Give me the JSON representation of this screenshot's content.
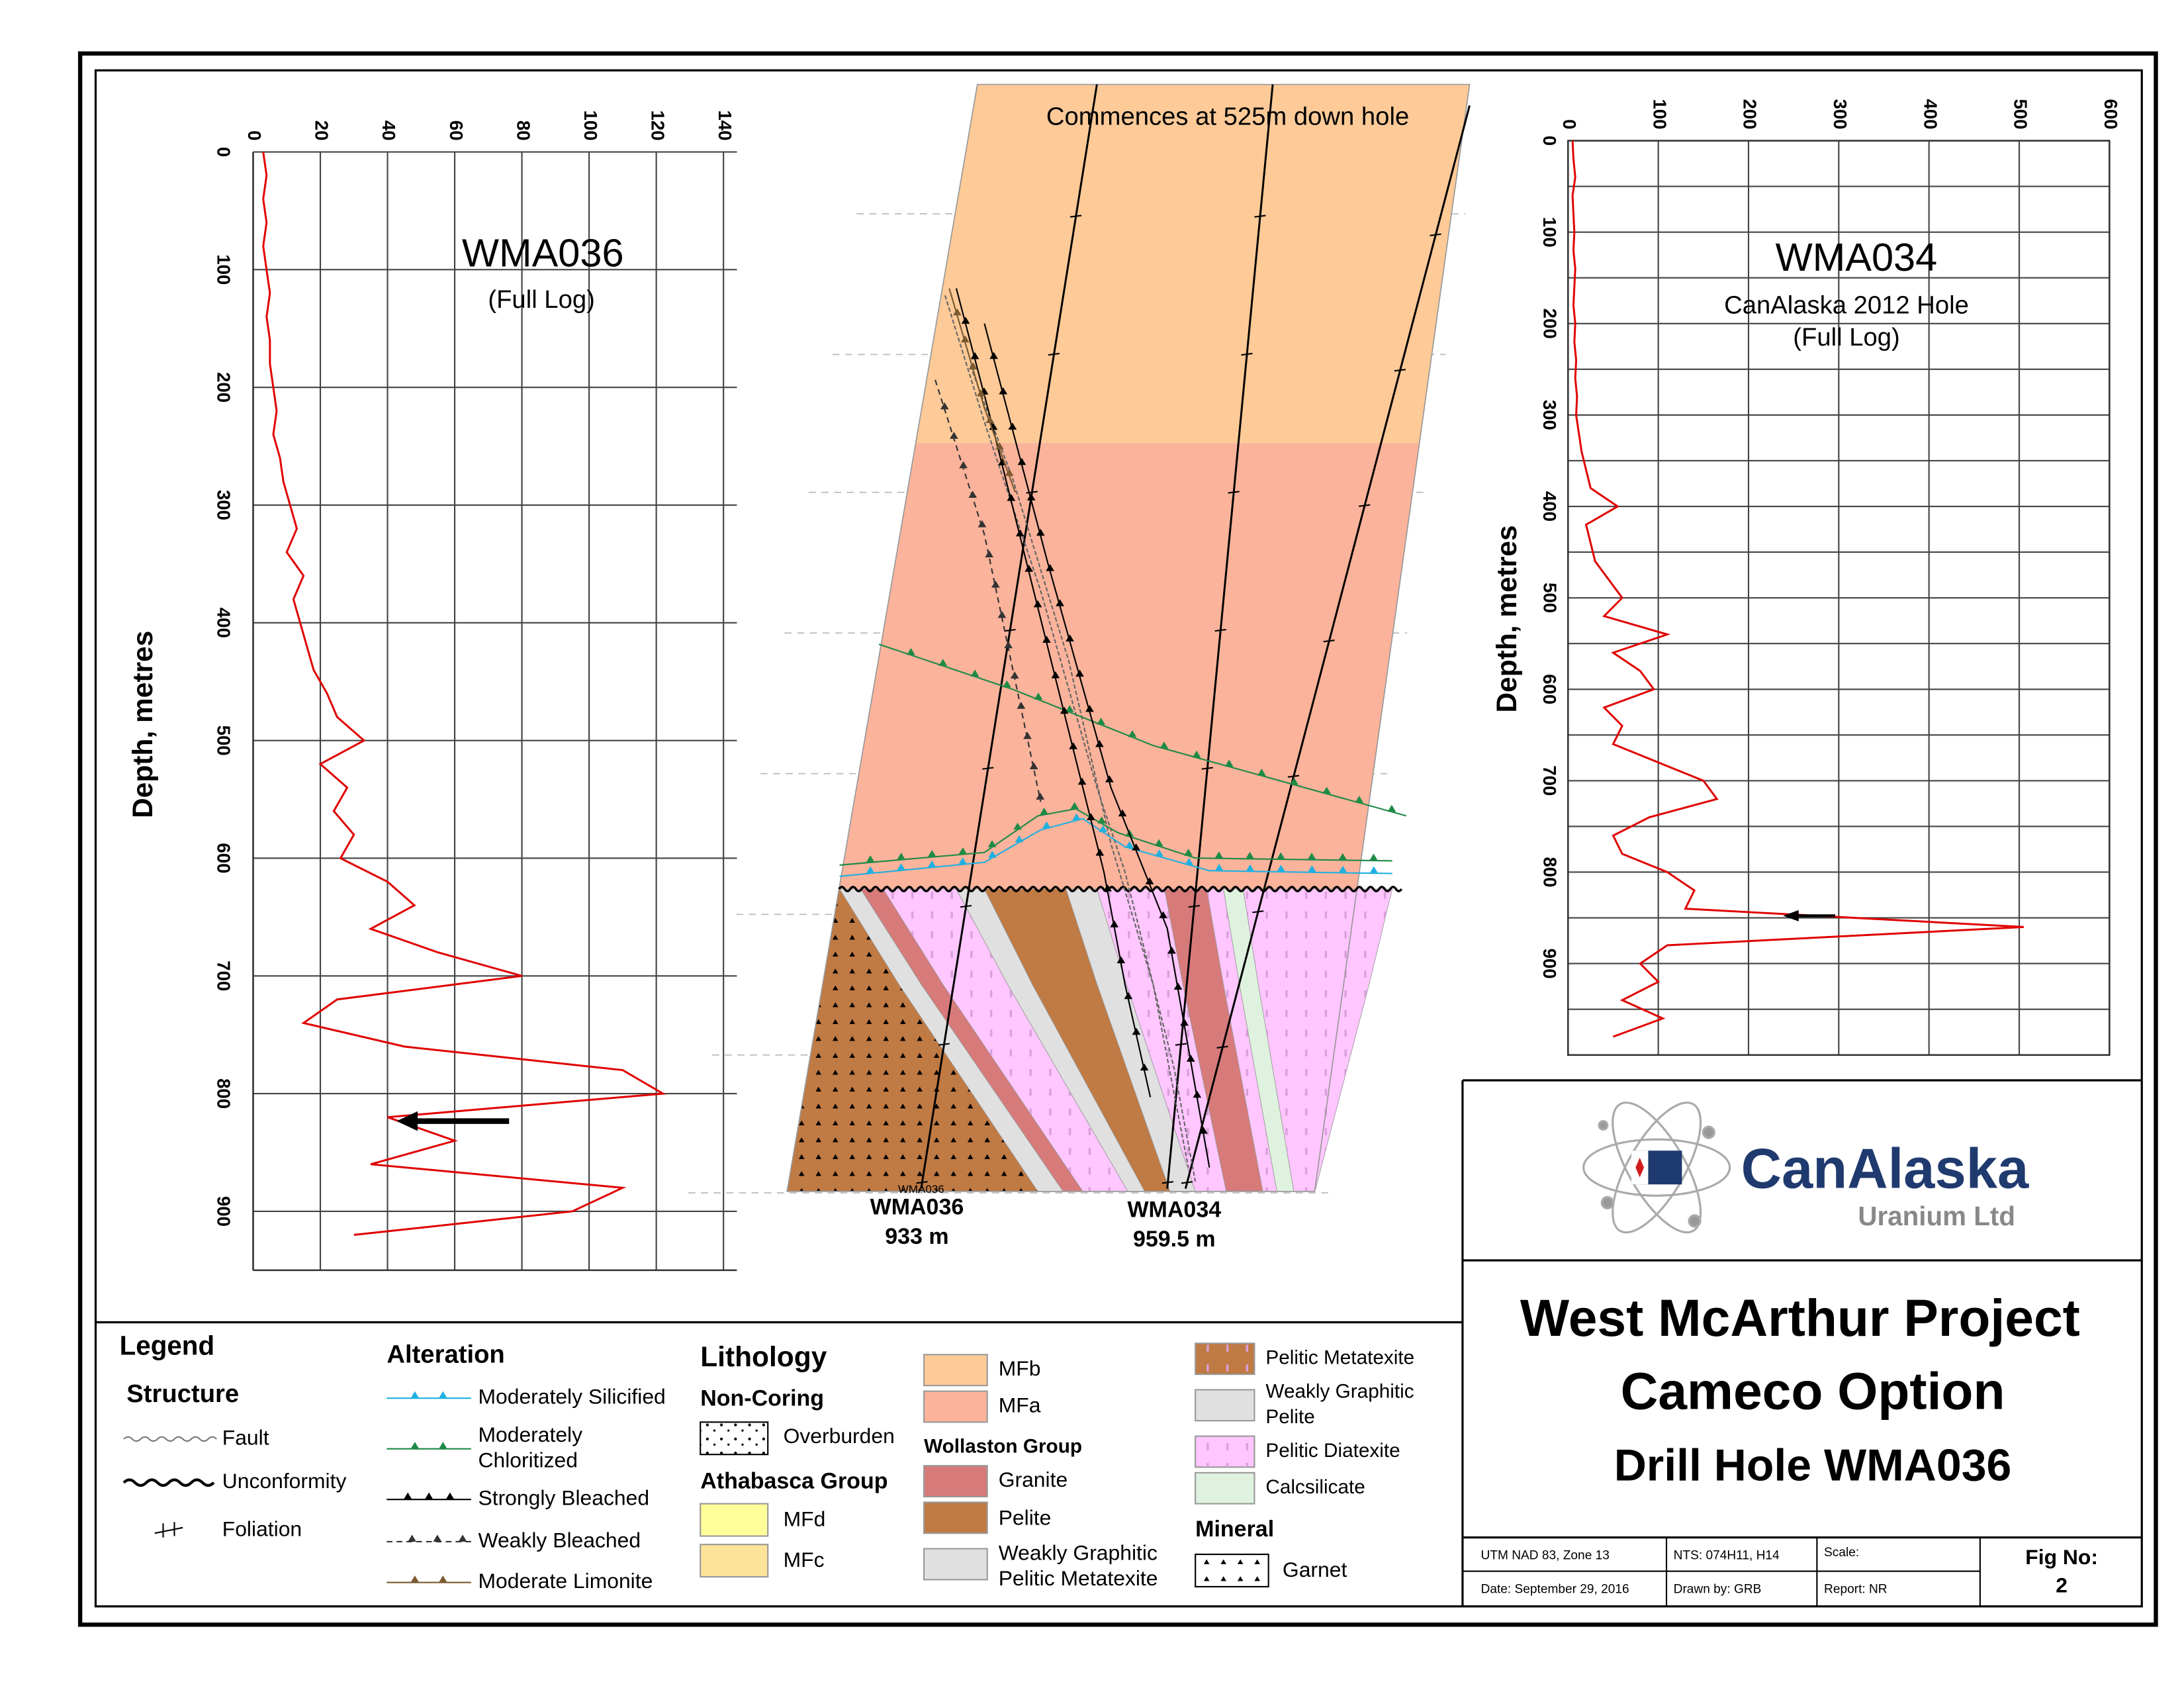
{
  "chart_data": [
    {
      "type": "line",
      "title": "WMA036",
      "subtitle": "(Full Log)",
      "y_label": "Depth, metres",
      "color": "#e00000",
      "depths": [
        0,
        20,
        40,
        60,
        80,
        100,
        120,
        140,
        160,
        180,
        200,
        220,
        240,
        260,
        280,
        300,
        320,
        340,
        360,
        380,
        400,
        420,
        440,
        460,
        480,
        500,
        520,
        540,
        560,
        580,
        600,
        620,
        640,
        660,
        680,
        700,
        720,
        740,
        760,
        780,
        800,
        820,
        840,
        860,
        880,
        900,
        920
      ],
      "values": [
        3,
        4,
        3,
        4,
        3,
        4,
        5,
        4,
        5,
        5,
        6,
        7,
        6,
        8,
        9,
        11,
        13,
        10,
        15,
        12,
        14,
        16,
        18,
        22,
        25,
        33,
        20,
        28,
        24,
        30,
        26,
        40,
        48,
        35,
        55,
        80,
        25,
        15,
        45,
        110,
        122,
        40,
        60,
        35,
        110,
        95,
        30
      ],
      "xlim": [
        0,
        144
      ],
      "xticks": [
        0,
        20,
        40,
        60,
        80,
        100,
        120,
        140
      ],
      "ylim": [
        0,
        950
      ],
      "yticks": [
        0,
        100,
        200,
        300,
        400,
        500,
        600,
        700,
        800,
        900
      ]
    },
    {
      "type": "line",
      "title": "WMA034",
      "subtitle": "CanAlaska 2012 Hole",
      "subtitle2": "(Full Log)",
      "y_label": "Depth, metres",
      "color": "#e00000",
      "depths": [
        0,
        20,
        40,
        60,
        80,
        100,
        120,
        140,
        160,
        180,
        200,
        220,
        240,
        260,
        280,
        300,
        320,
        340,
        360,
        380,
        400,
        420,
        440,
        460,
        480,
        500,
        520,
        540,
        560,
        580,
        600,
        620,
        640,
        660,
        680,
        700,
        720,
        740,
        760,
        780,
        800,
        820,
        840,
        860,
        880,
        900,
        920,
        940,
        960,
        980
      ],
      "values": [
        5,
        6,
        8,
        5,
        6,
        7,
        6,
        8,
        7,
        6,
        8,
        7,
        9,
        8,
        10,
        9,
        12,
        15,
        20,
        25,
        55,
        20,
        25,
        30,
        45,
        60,
        40,
        110,
        50,
        80,
        95,
        40,
        60,
        50,
        100,
        150,
        165,
        90,
        50,
        60,
        110,
        140,
        130,
        505,
        110,
        80,
        100,
        60,
        105,
        50
      ],
      "xlim": [
        0,
        600
      ],
      "xticks": [
        0,
        100,
        200,
        300,
        400,
        500,
        600
      ],
      "ylim": [
        0,
        1000
      ],
      "yticks": [
        0,
        100,
        200,
        300,
        400,
        500,
        600,
        700,
        800,
        900
      ],
      "minor_yticks": [
        50,
        150,
        250,
        350,
        450,
        550,
        650,
        750,
        850,
        950
      ]
    }
  ],
  "section": {
    "note": "Commences at 525m down hole",
    "holes": [
      {
        "name": "WMA036",
        "depth": "933 m"
      },
      {
        "name": "WMA034",
        "depth": "959.5 m"
      }
    ],
    "hole_tag": "WMA036"
  },
  "legend": {
    "title": "Legend",
    "structure": {
      "title": "Structure",
      "items": [
        "Fault",
        "Unconformity",
        "Foliation"
      ]
    },
    "alteration": {
      "title": "Alteration",
      "items": [
        "Moderately Silicified",
        "Moderately",
        "Chloritized",
        "Strongly Bleached",
        "Weakly Bleached",
        "Moderate Limonite"
      ]
    },
    "lithology": {
      "title": "Lithology",
      "non_coring": "Non-Coring",
      "overburden": "Overburden",
      "athabasca": "Athabasca Group",
      "mfd": "MFd",
      "mfc": "MFc",
      "mfb": "MFb",
      "mfa": "MFa",
      "wollaston": "Wollaston Group",
      "granite": "Granite",
      "pelite": "Pelite",
      "wgpm": [
        "Weakly Graphitic",
        "Pelitic Metatexite"
      ],
      "pm": "Pelitic Metatexite",
      "wgp": [
        "Weakly Graphitic",
        "Pelite"
      ],
      "pd": "Pelitic Diatexite",
      "calc": "Calcsilicate",
      "mineral": "Mineral",
      "garnet": "Garnet"
    }
  },
  "title_block": {
    "company": "CanAlaska",
    "company_sub": "Uranium Ltd",
    "lines": [
      "West McArthur Project",
      "Cameco Option",
      "Drill Hole WMA036"
    ],
    "info": [
      "UTM NAD 83, Zone 13",
      "NTS: 074H11, H14",
      "Scale:",
      "Date: September 29, 2016",
      "Drawn by: GRB",
      "Report: NR"
    ],
    "fig_label": "Fig No:",
    "fig_no": "2"
  }
}
